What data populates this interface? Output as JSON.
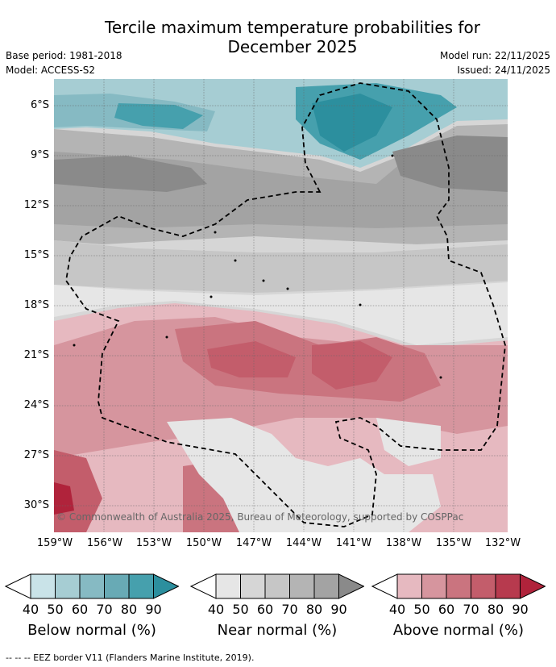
{
  "header": {
    "title_line1": "Tercile maximum temperature probabilities for",
    "title_line2": "December 2025",
    "base_period": "Base period: 1981-2018",
    "model": "Model: ACCESS-S2",
    "model_run": "Model run: 22/11/2025",
    "issued": "Issued: 24/11/2025"
  },
  "axes": {
    "lat_labels": [
      "6°S",
      "9°S",
      "12°S",
      "15°S",
      "18°S",
      "21°S",
      "24°S",
      "27°S",
      "30°S"
    ],
    "lon_labels": [
      "159°W",
      "156°W",
      "153°W",
      "150°W",
      "147°W",
      "144°W",
      "141°W",
      "138°W",
      "135°W",
      "132°W"
    ]
  },
  "credit": "© Commonwealth of Australia 2025, Bureau of Meteorology, supported by COSPPac",
  "legend": {
    "ticks": [
      "40",
      "50",
      "60",
      "70",
      "80",
      "90"
    ],
    "below": {
      "label": "Below normal (%)",
      "colors": [
        "#c9e3e8",
        "#a6cdd3",
        "#86bac3",
        "#68aab5",
        "#46a0ad",
        "#2c8f9e"
      ]
    },
    "near": {
      "label": "Near normal (%)",
      "colors": [
        "#e6e6e6",
        "#d6d6d6",
        "#c6c6c6",
        "#b4b4b4",
        "#a3a3a3",
        "#8a8a8a"
      ]
    },
    "above": {
      "label": "Above normal (%)",
      "colors": [
        "#e6b9c0",
        "#d6959e",
        "#ca747f",
        "#c35d6b",
        "#b73a4e",
        "#b0233b"
      ]
    }
  },
  "footer": "--  --  -- EEZ border V11 (Flanders Marine Institute, 2019)."
}
